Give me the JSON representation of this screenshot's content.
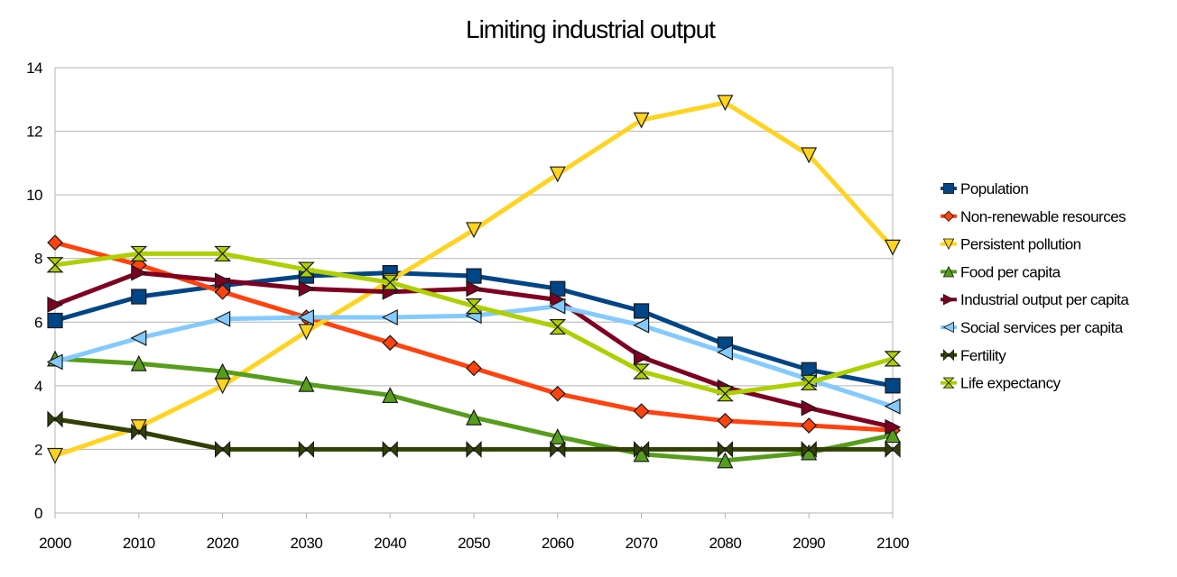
{
  "chart_data": {
    "type": "line",
    "title": "Limiting industrial output",
    "xlabel": "",
    "ylabel": "",
    "x": [
      2000,
      2010,
      2020,
      2030,
      2040,
      2050,
      2060,
      2070,
      2080,
      2090,
      2100
    ],
    "ylim": [
      0,
      14
    ],
    "yticks": [
      0,
      2,
      4,
      6,
      8,
      10,
      12,
      14
    ],
    "grid": true,
    "legend_position": "right",
    "series": [
      {
        "name": "Population",
        "color": "#004586",
        "marker": "square",
        "values": [
          6.05,
          6.8,
          7.15,
          7.45,
          7.55,
          7.45,
          7.05,
          6.35,
          5.3,
          4.5,
          4.0
        ]
      },
      {
        "name": "Non-renewable resources",
        "color": "#ff420e",
        "marker": "diamond",
        "values": [
          8.5,
          7.8,
          6.95,
          6.15,
          5.35,
          4.55,
          3.75,
          3.2,
          2.9,
          2.75,
          2.6
        ]
      },
      {
        "name": "Persistent pollution",
        "color": "#ffd320",
        "marker": "triangle-down",
        "values": [
          1.8,
          2.7,
          4.0,
          5.7,
          7.3,
          8.9,
          10.65,
          12.35,
          12.9,
          11.25,
          8.35
        ]
      },
      {
        "name": "Food per capita",
        "color": "#579d1c",
        "marker": "triangle-up",
        "values": [
          4.85,
          4.7,
          4.45,
          4.05,
          3.7,
          3.0,
          2.4,
          1.85,
          1.65,
          1.9,
          2.45
        ]
      },
      {
        "name": "Industrial output per capita",
        "color": "#7e0021",
        "marker": "triangle-right",
        "values": [
          6.55,
          7.55,
          7.3,
          7.05,
          6.95,
          7.05,
          6.7,
          4.9,
          3.95,
          3.3,
          2.7
        ]
      },
      {
        "name": "Social services per capita",
        "color": "#83caff",
        "marker": "triangle-left",
        "values": [
          4.75,
          5.5,
          6.1,
          6.15,
          6.15,
          6.2,
          6.5,
          5.9,
          5.05,
          4.2,
          3.35
        ]
      },
      {
        "name": "Fertility",
        "color": "#314004",
        "marker": "bowtie",
        "values": [
          2.95,
          2.55,
          2.0,
          2.0,
          2.0,
          2.0,
          2.0,
          2.0,
          2.0,
          2.0,
          2.0
        ]
      },
      {
        "name": "Life expectancy",
        "color": "#aecf00",
        "marker": "hourglass",
        "values": [
          7.8,
          8.15,
          8.15,
          7.65,
          7.25,
          6.5,
          5.85,
          4.45,
          3.75,
          4.1,
          4.85
        ]
      }
    ]
  }
}
